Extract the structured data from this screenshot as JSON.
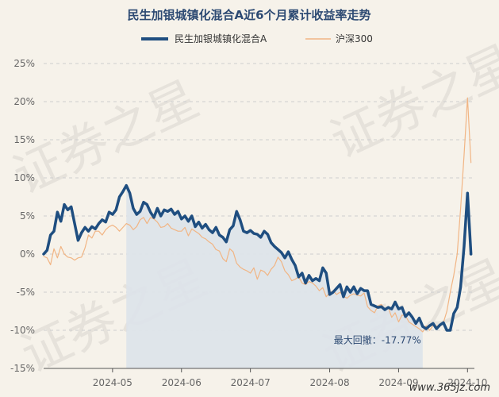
{
  "chart_data": {
    "type": "line",
    "title": "民生加银城镇化混合A近6个月累计收益率走势",
    "xlabel": "",
    "ylabel": "",
    "ylim": [
      -15,
      25
    ],
    "y_ticks": [
      "25%",
      "20%",
      "15%",
      "10%",
      "5%",
      "0%",
      "-5%",
      "-10%",
      "-15%"
    ],
    "y_tick_values": [
      25,
      20,
      15,
      10,
      5,
      0,
      -5,
      -10,
      -15
    ],
    "x_ticks": [
      "2024-05",
      "2024-06",
      "2024-07",
      "2024-08",
      "2024-09",
      "2024-10"
    ],
    "x_tick_positions": [
      20,
      40,
      60,
      83,
      103,
      123
    ],
    "x_range": [
      0,
      125
    ],
    "grid": true,
    "legend_position": "top-center",
    "series": [
      {
        "name": "民生加银城镇化混合A",
        "color": "#1f4e80",
        "values": [
          [
            0,
            0.0
          ],
          [
            1,
            0.5
          ],
          [
            2,
            2.5
          ],
          [
            3,
            3.0
          ],
          [
            4,
            5.5
          ],
          [
            5,
            4.3
          ],
          [
            6,
            6.5
          ],
          [
            7,
            5.8
          ],
          [
            8,
            6.2
          ],
          [
            9,
            4.0
          ],
          [
            10,
            1.8
          ],
          [
            11,
            2.8
          ],
          [
            12,
            3.5
          ],
          [
            13,
            3.0
          ],
          [
            14,
            3.6
          ],
          [
            15,
            3.3
          ],
          [
            16,
            4.0
          ],
          [
            17,
            4.5
          ],
          [
            18,
            4.2
          ],
          [
            19,
            5.5
          ],
          [
            20,
            5.2
          ],
          [
            21,
            5.8
          ],
          [
            22,
            7.5
          ],
          [
            23,
            8.2
          ],
          [
            24,
            9.0
          ],
          [
            25,
            8.0
          ],
          [
            26,
            6.0
          ],
          [
            27,
            5.2
          ],
          [
            28,
            5.6
          ],
          [
            29,
            6.8
          ],
          [
            30,
            6.5
          ],
          [
            31,
            5.5
          ],
          [
            32,
            4.8
          ],
          [
            33,
            6.0
          ],
          [
            34,
            5.0
          ],
          [
            35,
            5.8
          ],
          [
            36,
            5.6
          ],
          [
            37,
            5.9
          ],
          [
            38,
            5.2
          ],
          [
            39,
            5.6
          ],
          [
            40,
            4.6
          ],
          [
            41,
            5.0
          ],
          [
            42,
            4.3
          ],
          [
            43,
            5.0
          ],
          [
            44,
            3.6
          ],
          [
            45,
            4.2
          ],
          [
            46,
            3.4
          ],
          [
            47,
            3.9
          ],
          [
            48,
            3.2
          ],
          [
            49,
            2.8
          ],
          [
            50,
            3.5
          ],
          [
            51,
            2.5
          ],
          [
            52,
            2.2
          ],
          [
            53,
            1.6
          ],
          [
            54,
            3.2
          ],
          [
            55,
            3.7
          ],
          [
            56,
            5.6
          ],
          [
            57,
            4.5
          ],
          [
            58,
            3.0
          ],
          [
            59,
            2.8
          ],
          [
            60,
            3.1
          ],
          [
            61,
            2.7
          ],
          [
            62,
            2.6
          ],
          [
            63,
            2.2
          ],
          [
            64,
            3.0
          ],
          [
            65,
            2.6
          ],
          [
            66,
            1.5
          ],
          [
            67,
            1.0
          ],
          [
            68,
            0.6
          ],
          [
            69,
            0.2
          ],
          [
            70,
            -0.5
          ],
          [
            71,
            0.3
          ],
          [
            72,
            -0.7
          ],
          [
            73,
            -1.5
          ],
          [
            74,
            -3.0
          ],
          [
            75,
            -2.5
          ],
          [
            76,
            -3.8
          ],
          [
            77,
            -2.8
          ],
          [
            78,
            -3.5
          ],
          [
            79,
            -3.2
          ],
          [
            80,
            -3.5
          ],
          [
            81,
            -1.8
          ],
          [
            82,
            -2.5
          ],
          [
            83,
            -5.3
          ],
          [
            84,
            -5.0
          ],
          [
            85,
            -4.5
          ],
          [
            86,
            -4.0
          ],
          [
            87,
            -5.6
          ],
          [
            88,
            -4.3
          ],
          [
            89,
            -5.0
          ],
          [
            90,
            -4.3
          ],
          [
            91,
            -5.2
          ],
          [
            92,
            -4.5
          ],
          [
            93,
            -4.8
          ],
          [
            94,
            -4.8
          ],
          [
            95,
            -6.6
          ],
          [
            96,
            -6.8
          ],
          [
            97,
            -7.0
          ],
          [
            98,
            -6.9
          ],
          [
            99,
            -7.3
          ],
          [
            100,
            -7.0
          ],
          [
            101,
            -7.2
          ],
          [
            102,
            -6.3
          ],
          [
            103,
            -7.2
          ],
          [
            104,
            -7.0
          ],
          [
            105,
            -8.2
          ],
          [
            106,
            -7.7
          ],
          [
            107,
            -8.3
          ],
          [
            108,
            -9.1
          ],
          [
            109,
            -8.4
          ],
          [
            110,
            -9.5
          ],
          [
            111,
            -9.8
          ],
          [
            112,
            -9.4
          ],
          [
            113,
            -9.1
          ],
          [
            114,
            -9.8
          ],
          [
            115,
            -9.3
          ],
          [
            116,
            -9.0
          ],
          [
            117,
            -10.0
          ],
          [
            118,
            -10.0
          ],
          [
            119,
            -7.8
          ],
          [
            120,
            -7.0
          ],
          [
            121,
            -4.3
          ],
          [
            122,
            1.0
          ],
          [
            123,
            8.0
          ],
          [
            124,
            0.0
          ]
        ]
      },
      {
        "name": "沪深300",
        "color": "#f1b584",
        "values": [
          [
            0,
            -0.3
          ],
          [
            1,
            -0.5
          ],
          [
            2,
            -1.4
          ],
          [
            3,
            0.7
          ],
          [
            4,
            -0.5
          ],
          [
            5,
            1.0
          ],
          [
            6,
            0.0
          ],
          [
            7,
            -0.4
          ],
          [
            8,
            -0.5
          ],
          [
            9,
            -0.8
          ],
          [
            10,
            -0.5
          ],
          [
            11,
            -0.4
          ],
          [
            12,
            0.8
          ],
          [
            13,
            2.5
          ],
          [
            14,
            2.1
          ],
          [
            15,
            3.0
          ],
          [
            16,
            3.0
          ],
          [
            17,
            2.5
          ],
          [
            18,
            3.2
          ],
          [
            19,
            3.6
          ],
          [
            20,
            3.8
          ],
          [
            21,
            3.5
          ],
          [
            22,
            3.0
          ],
          [
            23,
            3.5
          ],
          [
            24,
            4.0
          ],
          [
            25,
            3.8
          ],
          [
            26,
            3.2
          ],
          [
            27,
            3.6
          ],
          [
            28,
            4.5
          ],
          [
            29,
            4.8
          ],
          [
            30,
            4.0
          ],
          [
            31,
            4.8
          ],
          [
            32,
            4.6
          ],
          [
            33,
            4.2
          ],
          [
            34,
            3.5
          ],
          [
            35,
            3.6
          ],
          [
            36,
            4.0
          ],
          [
            37,
            3.4
          ],
          [
            38,
            3.2
          ],
          [
            39,
            3.0
          ],
          [
            40,
            3.0
          ],
          [
            41,
            3.5
          ],
          [
            42,
            2.4
          ],
          [
            43,
            3.3
          ],
          [
            44,
            3.0
          ],
          [
            45,
            2.7
          ],
          [
            46,
            2.2
          ],
          [
            47,
            2.0
          ],
          [
            48,
            1.6
          ],
          [
            49,
            1.3
          ],
          [
            50,
            0.6
          ],
          [
            51,
            0.4
          ],
          [
            52,
            -0.6
          ],
          [
            53,
            -1.0
          ],
          [
            54,
            0.7
          ],
          [
            55,
            0.3
          ],
          [
            56,
            -1.2
          ],
          [
            57,
            -1.7
          ],
          [
            58,
            -2.0
          ],
          [
            59,
            -2.2
          ],
          [
            60,
            -2.5
          ],
          [
            61,
            -1.8
          ],
          [
            62,
            -3.3
          ],
          [
            63,
            -2.1
          ],
          [
            64,
            -2.3
          ],
          [
            65,
            -2.8
          ],
          [
            66,
            -2.0
          ],
          [
            67,
            -1.5
          ],
          [
            68,
            -0.4
          ],
          [
            69,
            -1.0
          ],
          [
            70,
            -2.2
          ],
          [
            71,
            -2.7
          ],
          [
            72,
            -3.5
          ],
          [
            73,
            -3.3
          ],
          [
            74,
            -3.0
          ],
          [
            75,
            -3.8
          ],
          [
            76,
            -4.0
          ],
          [
            77,
            -3.6
          ],
          [
            78,
            -3.8
          ],
          [
            79,
            -4.2
          ],
          [
            80,
            -4.8
          ],
          [
            81,
            -4.4
          ],
          [
            82,
            -5.6
          ],
          [
            83,
            -5.1
          ],
          [
            84,
            -4.8
          ],
          [
            85,
            -5.3
          ],
          [
            86,
            -5.0
          ],
          [
            87,
            -5.5
          ],
          [
            88,
            -5.8
          ],
          [
            89,
            -5.4
          ],
          [
            90,
            -5.2
          ],
          [
            91,
            -5.4
          ],
          [
            92,
            -5.5
          ],
          [
            93,
            -5.1
          ],
          [
            94,
            -6.9
          ],
          [
            95,
            -7.4
          ],
          [
            96,
            -7.7
          ],
          [
            97,
            -6.8
          ],
          [
            98,
            -6.6
          ],
          [
            99,
            -7.2
          ],
          [
            100,
            -7.0
          ],
          [
            101,
            -8.3
          ],
          [
            102,
            -7.7
          ],
          [
            103,
            -8.9
          ],
          [
            104,
            -8.0
          ],
          [
            105,
            -8.1
          ],
          [
            106,
            -8.9
          ],
          [
            107,
            -9.2
          ],
          [
            108,
            -9.5
          ],
          [
            109,
            -9.8
          ],
          [
            110,
            -10.2
          ],
          [
            111,
            -9.4
          ],
          [
            112,
            -10.0
          ],
          [
            113,
            -9.4
          ],
          [
            114,
            -9.4
          ],
          [
            115,
            -9.5
          ],
          [
            116,
            -9.0
          ],
          [
            117,
            -7.5
          ],
          [
            118,
            -5.0
          ],
          [
            119,
            -2.8
          ],
          [
            120,
            0.0
          ],
          [
            121,
            6.0
          ],
          [
            122,
            13.0
          ],
          [
            123,
            20.5
          ],
          [
            124,
            12.0
          ]
        ]
      }
    ],
    "max_drawdown": {
      "label": "最大回撤：-17.77%",
      "start_x": 24,
      "end_x": 110,
      "fill_color": "#dde3ea"
    }
  },
  "watermark": {
    "text_1": "证券之星",
    "text_2": "证券之星",
    "text_3": "证券之星",
    "text_4": "证券之星"
  },
  "site_label": "www.365jz.com"
}
